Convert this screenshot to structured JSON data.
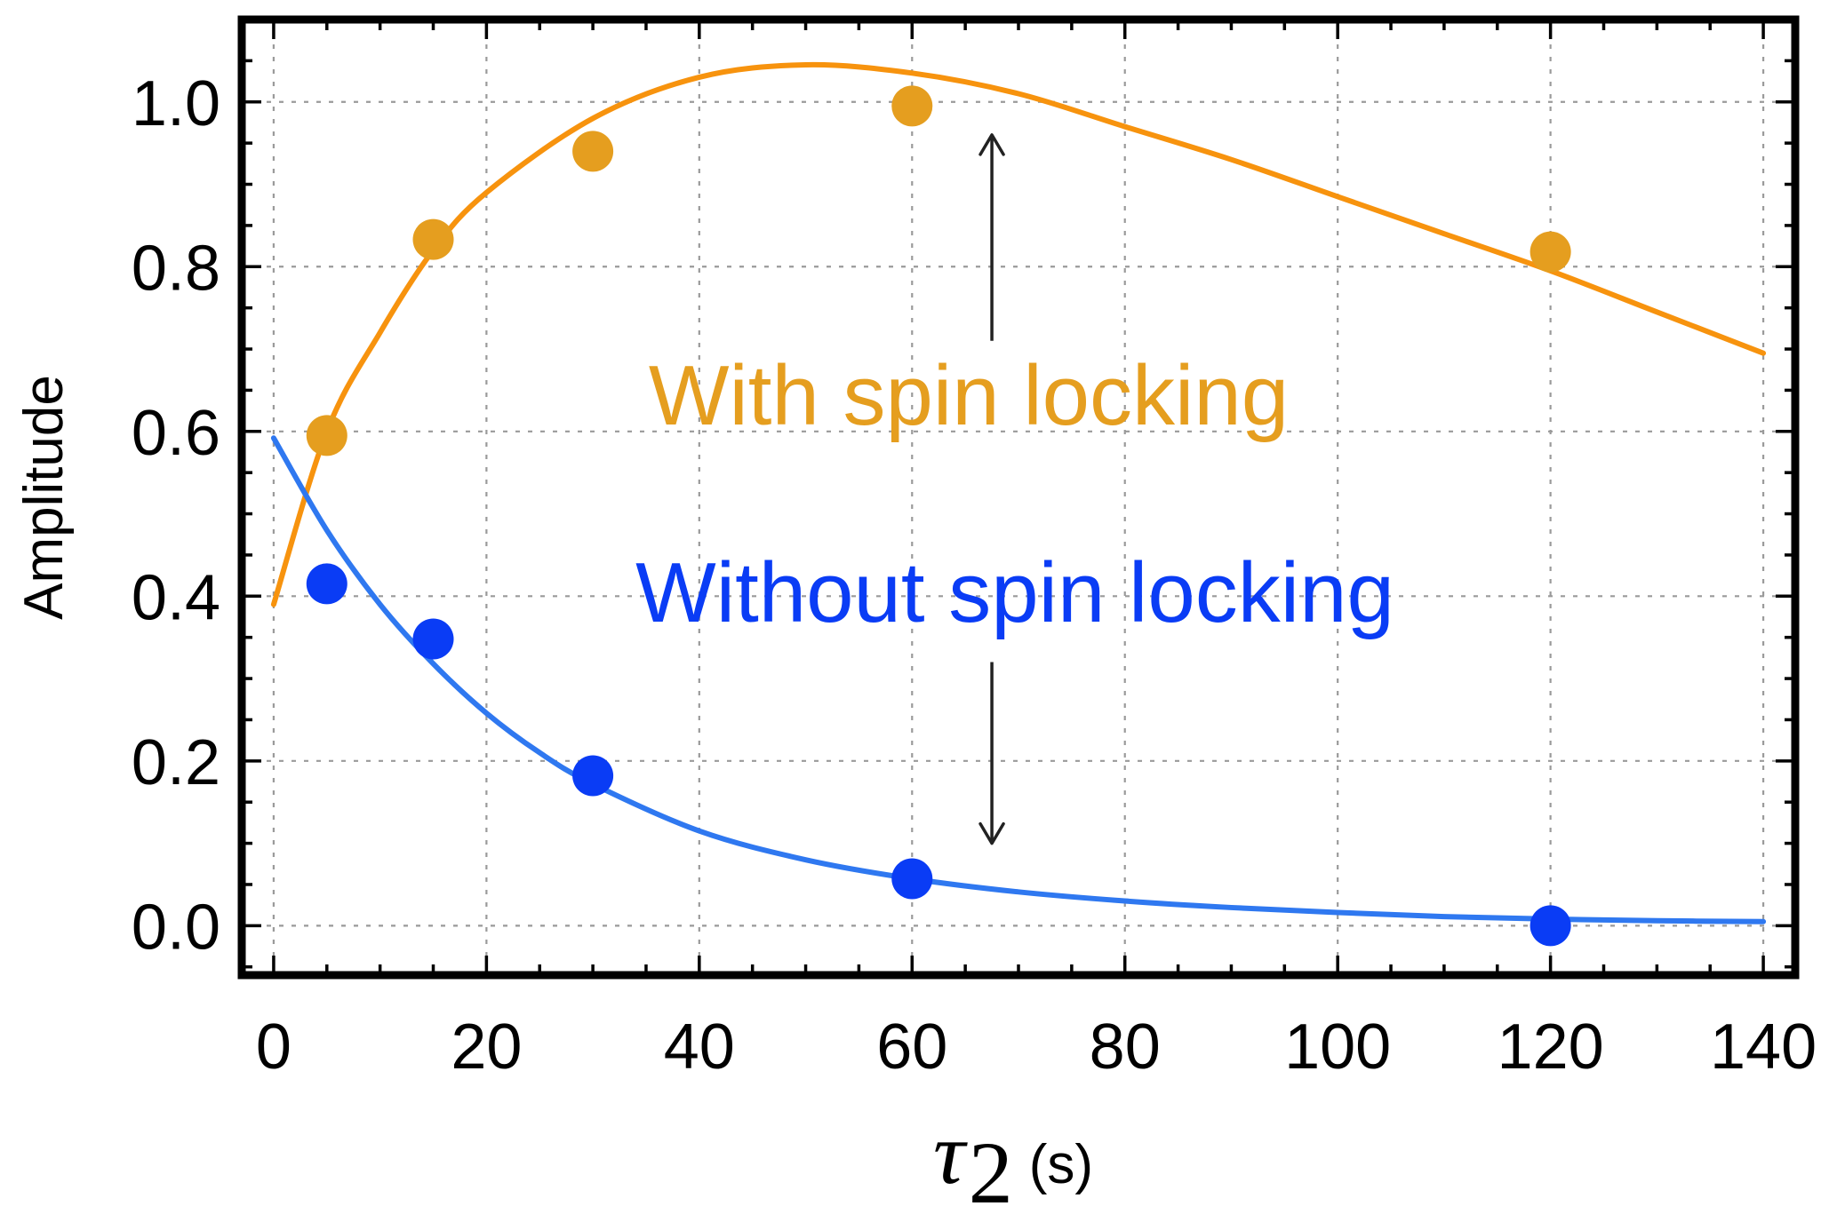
{
  "chart_data": {
    "type": "scatter",
    "title": "",
    "xlabel": {
      "symbol": "τ",
      "subscript": "2",
      "unit": "(s)"
    },
    "ylabel": "Amplitude",
    "xlim": [
      -3,
      143
    ],
    "ylim": [
      -0.06,
      1.1
    ],
    "x_ticks": [
      0,
      20,
      40,
      60,
      80,
      100,
      120,
      140
    ],
    "x_tick_labels": [
      "0",
      "20",
      "40",
      "60",
      "80",
      "100",
      "120",
      "140"
    ],
    "y_ticks": [
      0.0,
      0.2,
      0.4,
      0.6,
      0.8,
      1.0
    ],
    "y_tick_labels": [
      "0.0",
      "0.2",
      "0.4",
      "0.6",
      "0.8",
      "1.0"
    ],
    "grid": true,
    "series": [
      {
        "name": "With spin locking",
        "color": "#e59e1f",
        "fit_color": "#f7930e",
        "x": [
          5,
          15,
          30,
          60,
          120
        ],
        "y": [
          0.595,
          0.833,
          0.94,
          0.995,
          0.818
        ],
        "fit": {
          "x": [
            0,
            5,
            10,
            15,
            20,
            30,
            40,
            50,
            60,
            70,
            80,
            90,
            100,
            110,
            120,
            130,
            140
          ],
          "y": [
            0.39,
            0.6,
            0.72,
            0.82,
            0.89,
            0.98,
            1.03,
            1.045,
            1.035,
            1.01,
            0.97,
            0.93,
            0.885,
            0.84,
            0.795,
            0.745,
            0.695
          ]
        }
      },
      {
        "name": "Without spin locking",
        "color": "#0a3cf5",
        "fit_color": "#2f78f0",
        "x": [
          5,
          15,
          30,
          60,
          120
        ],
        "y": [
          0.415,
          0.348,
          0.182,
          0.057,
          0.0
        ],
        "fit": {
          "x": [
            0,
            5,
            10,
            15,
            20,
            25,
            30,
            40,
            50,
            60,
            70,
            80,
            90,
            100,
            110,
            120,
            130,
            140
          ],
          "y": [
            0.592,
            0.48,
            0.39,
            0.318,
            0.258,
            0.21,
            0.172,
            0.115,
            0.08,
            0.057,
            0.041,
            0.03,
            0.022,
            0.016,
            0.011,
            0.008,
            0.006,
            0.005
          ]
        }
      }
    ],
    "annotations": [
      {
        "text": "With spin locking",
        "color": "#e59e1f"
      },
      {
        "text": "Without spin locking",
        "color": "#0a3cf5"
      }
    ],
    "arrows": [
      {
        "x": 67.5,
        "from": 0.71,
        "to": 0.96
      },
      {
        "x": 67.5,
        "from": 0.32,
        "to": 0.1
      }
    ]
  }
}
